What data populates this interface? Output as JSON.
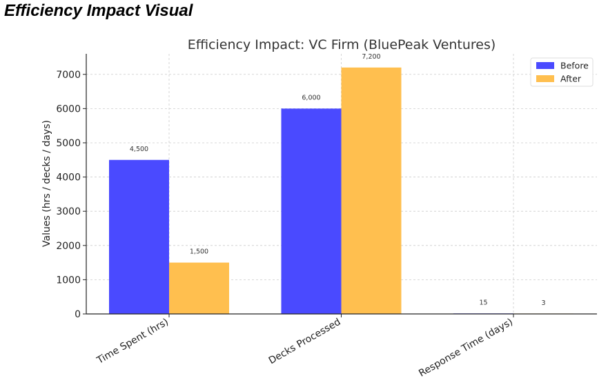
{
  "page": {
    "heading": "Efficiency Impact Visual"
  },
  "chart_data": {
    "type": "bar",
    "title": "Efficiency Impact: VC Firm (BluePeak Ventures)",
    "xlabel": "",
    "ylabel": "Values (hrs / decks / days)",
    "categories": [
      "Time Spent (hrs)",
      "Decks Processed",
      "Response Time (days)"
    ],
    "series": [
      {
        "name": "Before",
        "values": [
          4500,
          6000,
          15
        ],
        "labels": [
          "4,500",
          "6,000",
          "15"
        ],
        "color": "#4a4aff"
      },
      {
        "name": "After",
        "values": [
          1500,
          7200,
          3
        ],
        "labels": [
          "1,500",
          "7,200",
          "3"
        ],
        "color": "#ffbf4f"
      }
    ],
    "ylim": [
      0,
      7600
    ],
    "yticks": [
      0,
      1000,
      2000,
      3000,
      4000,
      5000,
      6000,
      7000
    ],
    "grid": true,
    "legend_position": "top-right"
  }
}
